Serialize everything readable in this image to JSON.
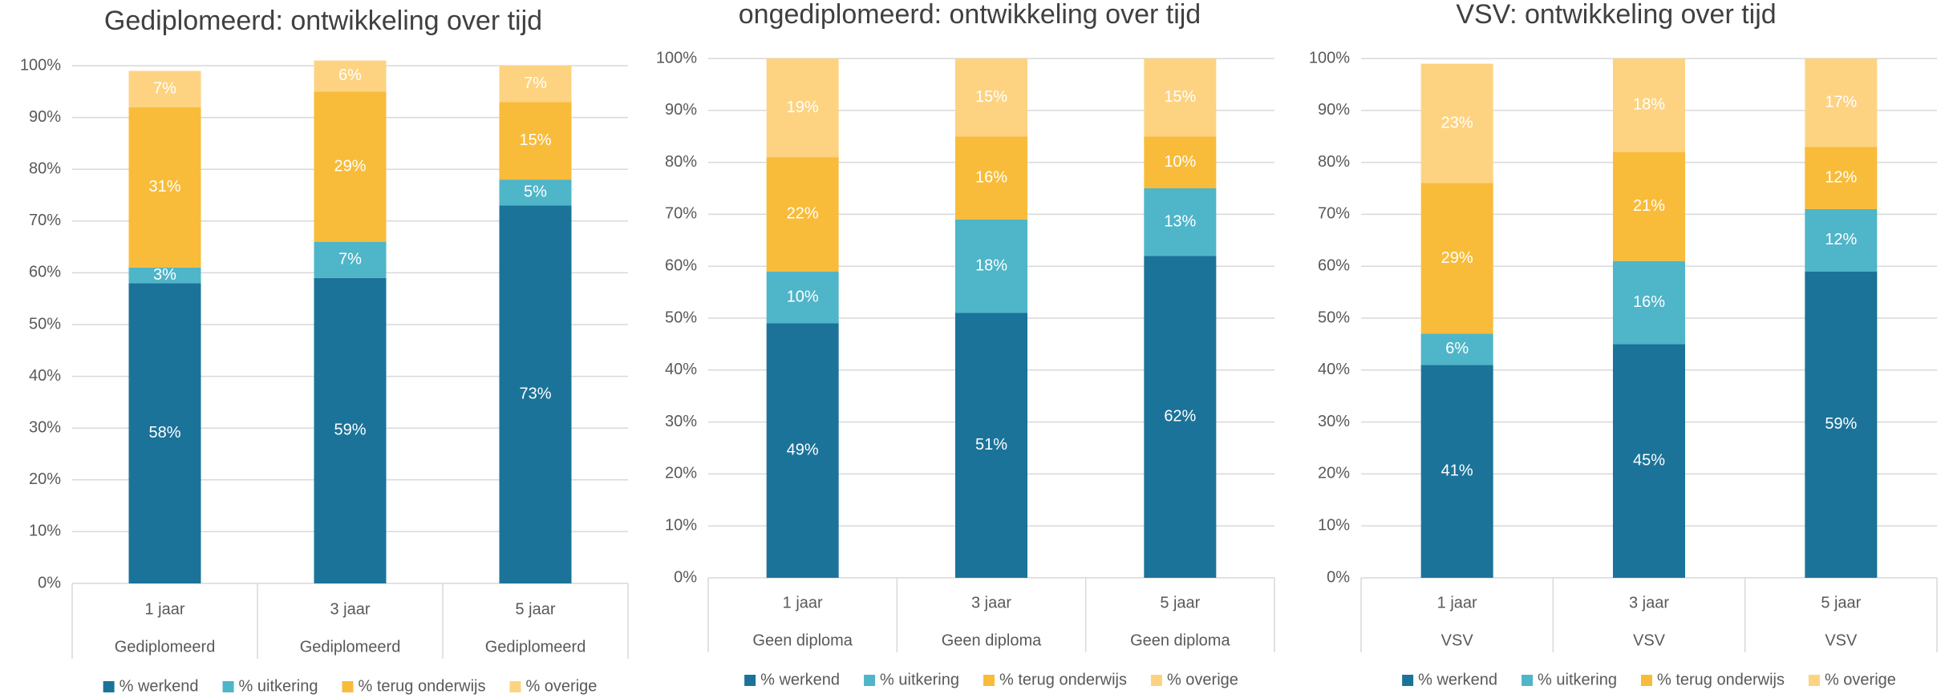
{
  "chart_data": [
    {
      "type": "stacked_bar",
      "title": "Gediplomeerd: ontwikkeling over tijd",
      "categories": [
        "1 jaar",
        "3 jaar",
        "5 jaar"
      ],
      "subcategories": [
        "Gediplomeerd",
        "Gediplomeerd",
        "Gediplomeerd"
      ],
      "series": [
        {
          "name": "% werkend",
          "color": "#1b7399",
          "values": [
            58,
            59,
            73
          ],
          "value_labels": [
            "58%",
            "59%",
            "73%"
          ]
        },
        {
          "name": "% uitkering",
          "color": "#4fb5c8",
          "values": [
            3,
            7,
            5
          ],
          "value_labels": [
            "3%",
            "7%",
            "5%"
          ]
        },
        {
          "name": "% terug onderwijs",
          "color": "#f8bc3a",
          "values": [
            31,
            29,
            15
          ],
          "value_labels": [
            "31%",
            "29%",
            "15%"
          ]
        },
        {
          "name": "% overige",
          "color": "#fdd382",
          "values": [
            7,
            6,
            7
          ],
          "value_labels": [
            "7%",
            "6%",
            "7%"
          ]
        }
      ],
      "ylim": [
        0,
        100
      ],
      "yticks": [
        {
          "value": 0,
          "label": "0%"
        },
        {
          "value": 10,
          "label": "10%"
        },
        {
          "value": 20,
          "label": "20%"
        },
        {
          "value": 30,
          "label": "30%"
        },
        {
          "value": 40,
          "label": "40%"
        },
        {
          "value": 50,
          "label": "50%"
        },
        {
          "value": 60,
          "label": "60%"
        },
        {
          "value": 70,
          "label": "70%"
        },
        {
          "value": 80,
          "label": "80%"
        },
        {
          "value": 90,
          "label": "90%"
        },
        {
          "value": 100,
          "label": "100%"
        }
      ],
      "grid": true,
      "legend": "bottom"
    },
    {
      "type": "stacked_bar",
      "title": "ongediplomeerd: ontwikkeling over tijd",
      "categories": [
        "1 jaar",
        "3 jaar",
        "5 jaar"
      ],
      "subcategories": [
        "Geen diploma",
        "Geen diploma",
        "Geen diploma"
      ],
      "series": [
        {
          "name": "% werkend",
          "color": "#1b7399",
          "values": [
            49,
            51,
            62
          ],
          "value_labels": [
            "49%",
            "51%",
            "62%"
          ]
        },
        {
          "name": "% uitkering",
          "color": "#4fb5c8",
          "values": [
            10,
            18,
            13
          ],
          "value_labels": [
            "10%",
            "18%",
            "13%"
          ]
        },
        {
          "name": "% terug onderwijs",
          "color": "#f8bc3a",
          "values": [
            22,
            16,
            10
          ],
          "value_labels": [
            "22%",
            "16%",
            "10%"
          ]
        },
        {
          "name": "% overige",
          "color": "#fdd382",
          "values": [
            19,
            15,
            15
          ],
          "value_labels": [
            "19%",
            "15%",
            "15%"
          ]
        }
      ],
      "ylim": [
        0,
        100
      ],
      "yticks": [
        {
          "value": 0,
          "label": "0%"
        },
        {
          "value": 10,
          "label": "10%"
        },
        {
          "value": 20,
          "label": "20%"
        },
        {
          "value": 30,
          "label": "30%"
        },
        {
          "value": 40,
          "label": "40%"
        },
        {
          "value": 50,
          "label": "50%"
        },
        {
          "value": 60,
          "label": "60%"
        },
        {
          "value": 70,
          "label": "70%"
        },
        {
          "value": 80,
          "label": "80%"
        },
        {
          "value": 90,
          "label": "90%"
        },
        {
          "value": 100,
          "label": "100%"
        }
      ],
      "grid": true,
      "legend": "bottom"
    },
    {
      "type": "stacked_bar",
      "title": "VSV: ontwikkeling over tijd",
      "categories": [
        "1 jaar",
        "3 jaar",
        "5 jaar"
      ],
      "subcategories": [
        "VSV",
        "VSV",
        "VSV"
      ],
      "series": [
        {
          "name": "% werkend",
          "color": "#1b7399",
          "values": [
            41,
            45,
            59
          ],
          "value_labels": [
            "41%",
            "45%",
            "59%"
          ]
        },
        {
          "name": "% uitkering",
          "color": "#4fb5c8",
          "values": [
            6,
            16,
            12
          ],
          "value_labels": [
            "6%",
            "16%",
            "12%"
          ]
        },
        {
          "name": "% terug onderwijs",
          "color": "#f8bc3a",
          "values": [
            29,
            21,
            12
          ],
          "value_labels": [
            "29%",
            "21%",
            "12%"
          ]
        },
        {
          "name": "% overige",
          "color": "#fdd382",
          "values": [
            23,
            18,
            17
          ],
          "value_labels": [
            "23%",
            "18%",
            "17%"
          ]
        }
      ],
      "ylim": [
        0,
        100
      ],
      "yticks": [
        {
          "value": 0,
          "label": "0%"
        },
        {
          "value": 10,
          "label": "10%"
        },
        {
          "value": 20,
          "label": "20%"
        },
        {
          "value": 30,
          "label": "30%"
        },
        {
          "value": 40,
          "label": "40%"
        },
        {
          "value": 50,
          "label": "50%"
        },
        {
          "value": 60,
          "label": "60%"
        },
        {
          "value": 70,
          "label": "70%"
        },
        {
          "value": 80,
          "label": "80%"
        },
        {
          "value": 90,
          "label": "90%"
        },
        {
          "value": 100,
          "label": "100%"
        }
      ],
      "grid": true,
      "legend": "bottom"
    }
  ]
}
